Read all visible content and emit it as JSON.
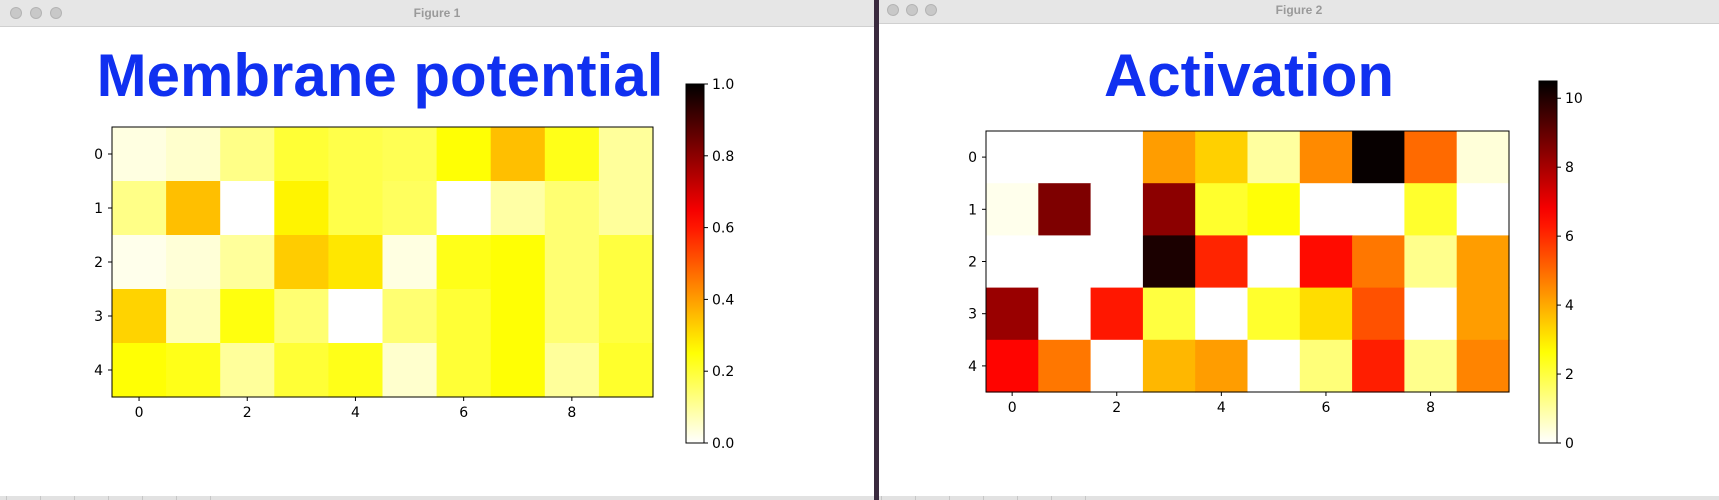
{
  "windows": [
    {
      "title": "Figure 1"
    },
    {
      "title": "Figure 2"
    }
  ],
  "chart_data": [
    {
      "type": "heatmap",
      "title": "Membrane potential",
      "colormap": "hot_r",
      "title_color": "#1030f0",
      "xticks": [
        "0",
        "2",
        "4",
        "6",
        "8"
      ],
      "yticks": [
        "0",
        "1",
        "2",
        "3",
        "4"
      ],
      "colorbar_ticks": [
        "0.0",
        "0.2",
        "0.4",
        "0.6",
        "0.8",
        "1.0"
      ],
      "vmin": 0,
      "vmax": 1,
      "values": [
        [
          0.03,
          0.05,
          0.12,
          0.2,
          0.18,
          0.17,
          0.25,
          0.35,
          0.23,
          0.1
        ],
        [
          0.12,
          0.35,
          0.0,
          0.27,
          0.18,
          0.16,
          0.0,
          0.09,
          0.14,
          0.1
        ],
        [
          0.02,
          0.04,
          0.1,
          0.33,
          0.29,
          0.03,
          0.23,
          0.25,
          0.14,
          0.19
        ],
        [
          0.32,
          0.07,
          0.24,
          0.14,
          0.0,
          0.14,
          0.2,
          0.25,
          0.14,
          0.19
        ],
        [
          0.25,
          0.23,
          0.1,
          0.2,
          0.23,
          0.05,
          0.2,
          0.25,
          0.1,
          0.21
        ]
      ]
    },
    {
      "type": "heatmap",
      "title": "Activation",
      "colormap": "hot_r",
      "title_color": "#1030f0",
      "xticks": [
        "0",
        "2",
        "4",
        "6",
        "8"
      ],
      "yticks": [
        "0",
        "1",
        "2",
        "3",
        "4"
      ],
      "colorbar_ticks": [
        "0",
        "2",
        "4",
        "6",
        "8",
        "10"
      ],
      "vmin": 0,
      "vmax": 10.5,
      "values": [
        [
          0,
          0,
          0,
          4.2,
          3.4,
          1.0,
          4.5,
          10.4,
          5.0,
          0.4
        ],
        [
          0.2,
          8.6,
          0,
          8.4,
          2.2,
          2.6,
          0,
          0,
          2.2,
          0
        ],
        [
          0,
          0,
          0,
          10.1,
          6.1,
          0,
          6.5,
          4.8,
          1.2,
          4.2
        ],
        [
          8.2,
          0,
          6.3,
          2.0,
          0,
          2.2,
          3.2,
          5.4,
          0,
          4.2
        ],
        [
          6.6,
          4.8,
          0,
          3.8,
          4.2,
          0,
          1.4,
          6.2,
          1.2,
          4.6
        ]
      ]
    }
  ]
}
